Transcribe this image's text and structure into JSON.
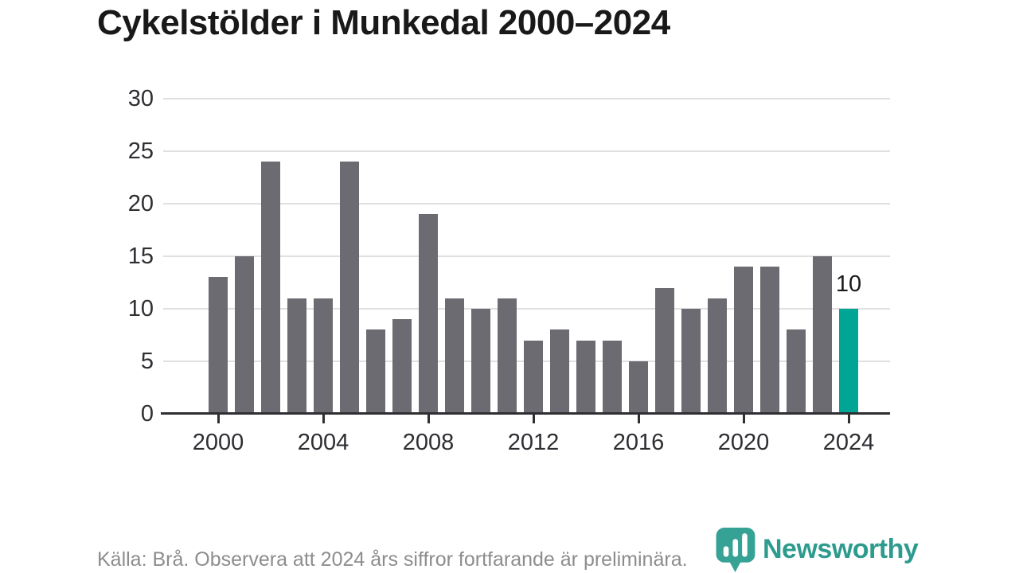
{
  "title": "Cykelstölder i Munkedal 2000–2024",
  "chart_data": {
    "type": "bar",
    "title": "Cykelstölder i Munkedal 2000–2024",
    "x": [
      2000,
      2001,
      2002,
      2003,
      2004,
      2005,
      2006,
      2007,
      2008,
      2009,
      2010,
      2011,
      2012,
      2013,
      2014,
      2015,
      2016,
      2017,
      2018,
      2019,
      2020,
      2021,
      2022,
      2023,
      2024
    ],
    "values": [
      13,
      15,
      24,
      11,
      11,
      24,
      8,
      9,
      19,
      11,
      10,
      11,
      7,
      8,
      7,
      7,
      5,
      12,
      10,
      11,
      14,
      14,
      8,
      15,
      10
    ],
    "xlabel": "",
    "ylabel": "",
    "ylim": [
      0,
      30
    ],
    "yticks": [
      0,
      5,
      10,
      15,
      20,
      25,
      30
    ],
    "xticks": [
      2000,
      2004,
      2008,
      2012,
      2016,
      2020,
      2024
    ],
    "grid": "horizontal",
    "legend": "none",
    "bar_color": "#6b6b71",
    "highlight_x": 2024,
    "highlight_color": "#00a596",
    "highlight_value_label": "10"
  },
  "footer": {
    "source_note": "Källa: Brå. Observera att 2024 års siffror fortfarande är preliminära."
  },
  "branding": {
    "wordmark": "Newsworthy",
    "icon": "bar-chart-bubble-icon",
    "icon_color": "#35a295",
    "icon_bars_color": "#ffffff",
    "wordmark_color": "#2d9b8e"
  },
  "colors": {
    "background": "#ffffff",
    "title_text": "#191919",
    "axis_text": "#2e2e33",
    "axis_line": "#2e2e33",
    "gridline": "#e0e0e0",
    "footer_text": "#8d8d8d"
  }
}
